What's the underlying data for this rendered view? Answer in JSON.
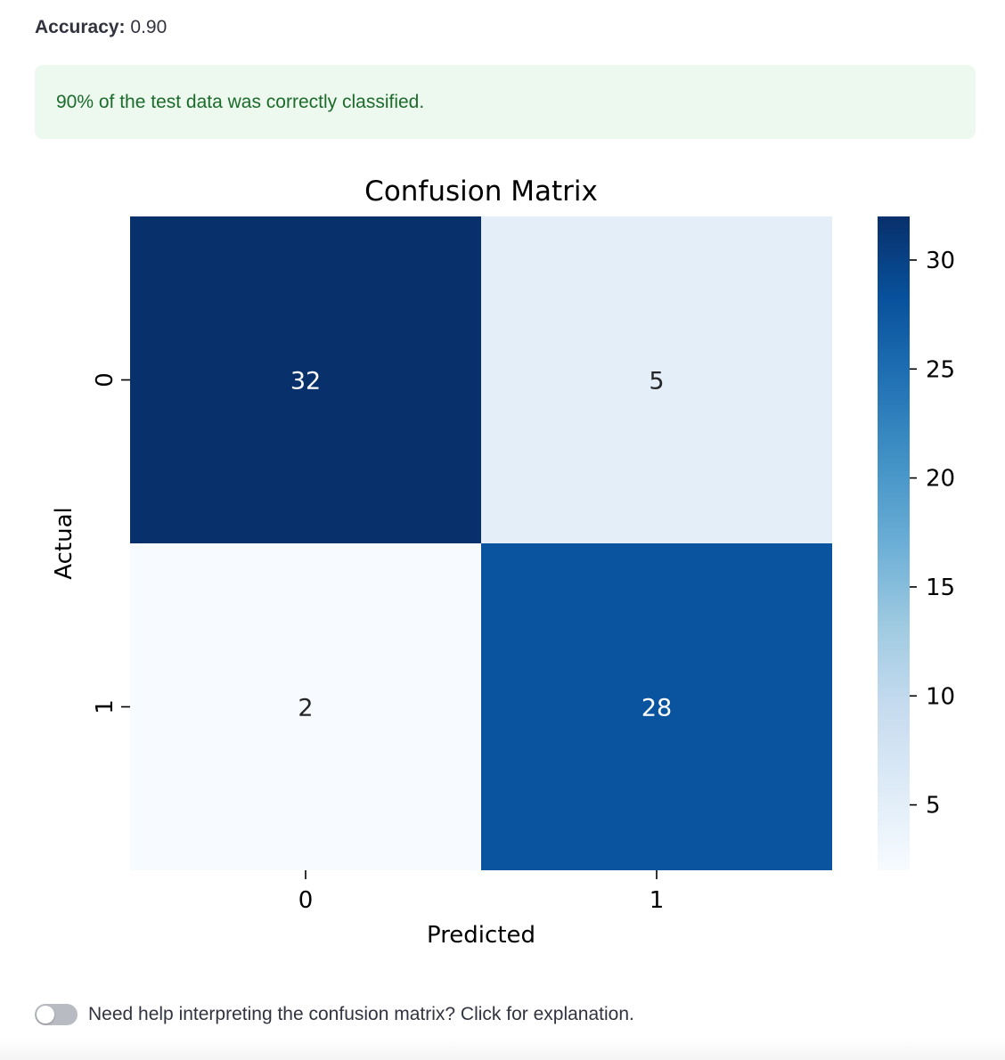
{
  "metric": {
    "label": "Accuracy:",
    "value": "0.90"
  },
  "alert": {
    "text": "90% of the test data was correctly classified.",
    "color": "#1c6b2b",
    "background": "#edf8ef"
  },
  "chart_data": {
    "type": "heatmap",
    "title": "Confusion Matrix",
    "xlabel": "Predicted",
    "ylabel": "Actual",
    "x_categories": [
      "0",
      "1"
    ],
    "y_categories": [
      "0",
      "1"
    ],
    "values": [
      [
        32,
        5
      ],
      [
        2,
        28
      ]
    ],
    "colormap": "Blues",
    "colorbar": {
      "min": 2,
      "max": 32,
      "ticks": [
        5,
        10,
        15,
        20,
        25,
        30
      ]
    },
    "annotate": true
  },
  "toggle": {
    "label": "Need help interpreting the confusion matrix? Click for explanation.",
    "checked": false
  }
}
